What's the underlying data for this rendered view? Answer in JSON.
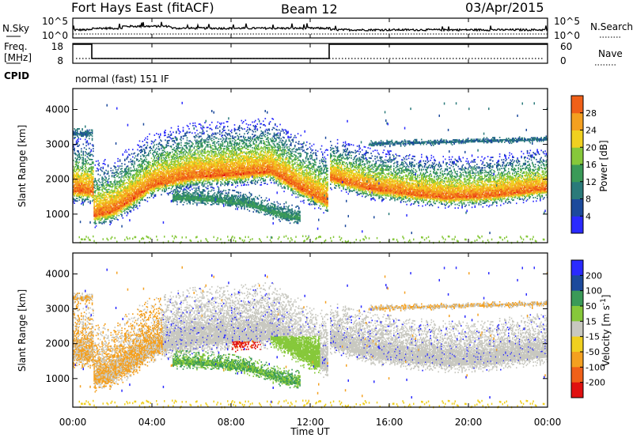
{
  "header": {
    "station": "Fort Hays East (fitACF)",
    "beam": "Beam 12",
    "date": "03/Apr/2015"
  },
  "noise_panel": {
    "left_label": "N.Sky",
    "right_label": "N.Search",
    "left_ticks": [
      "10^5",
      "10^0"
    ],
    "right_ticks": [
      "10^5",
      "10^0"
    ]
  },
  "freq_panel": {
    "left_label_line1": "Freq.",
    "left_label_line2": "[MHz]",
    "left_ticks": [
      "18",
      "8"
    ],
    "right_label": "Nave",
    "right_ticks": [
      "60",
      "0"
    ],
    "cpid_label": "CPID",
    "cpid_text": "normal (fast) 151 IF"
  },
  "colors": {
    "power_scale": [
      "#2a2aff",
      "#1c4a9c",
      "#2a7a7a",
      "#3a9a58",
      "#86c83a",
      "#f0d020",
      "#f4a020",
      "#f06018",
      "#e01010"
    ],
    "velocity_scale": [
      "#e01010",
      "#f06018",
      "#f4a020",
      "#f0d020",
      "#c8c8c0",
      "#c8c8c0",
      "#86c83a",
      "#3a9a58",
      "#1c4a9c",
      "#2a2aff"
    ]
  },
  "chart_data": [
    {
      "type": "heatmap",
      "title": "Power",
      "ylabel": "Slant Range [km]",
      "yticks": [
        "1000",
        "2000",
        "3000",
        "4000"
      ],
      "ylim": [
        180,
        4600
      ],
      "colorbar": {
        "label": "Power [dB]",
        "ticks": [
          "4",
          "8",
          "12",
          "16",
          "20",
          "24",
          "28"
        ],
        "range": [
          0,
          32
        ]
      }
    },
    {
      "type": "heatmap",
      "title": "Velocity",
      "ylabel": "Slant Range [km]",
      "yticks": [
        "1000",
        "2000",
        "3000",
        "4000"
      ],
      "ylim": [
        180,
        4600
      ],
      "colorbar": {
        "label": "Velocity [m s",
        "label_sup": "-1",
        "label_end": "]",
        "ticks": [
          "200",
          "100",
          "50",
          "15",
          "-15",
          "-50",
          "-100",
          "-200"
        ]
      }
    }
  ],
  "xaxis": {
    "label": "Time UT",
    "ticks": [
      "00:00",
      "04:00",
      "08:00",
      "12:00",
      "16:00",
      "20:00",
      "00:00"
    ],
    "xlim": [
      0,
      24
    ]
  }
}
